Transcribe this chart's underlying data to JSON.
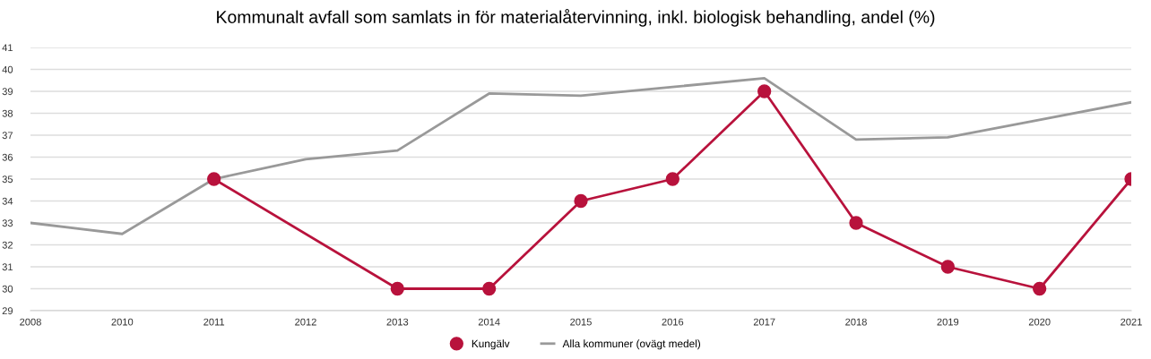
{
  "chart_data": {
    "type": "line",
    "title": "Kommunalt avfall som samlats in för materialåtervinning, inkl. biologisk behandling, andel (%)",
    "categories": [
      "2008",
      "2010",
      "2011",
      "2012",
      "2013",
      "2014",
      "2015",
      "2016",
      "2017",
      "2018",
      "2019",
      "2020",
      "2021"
    ],
    "series": [
      {
        "name": "Kungälv",
        "color": "#b8123c",
        "marker": "circle",
        "values": [
          null,
          null,
          35,
          null,
          30,
          30,
          34,
          35,
          39,
          33,
          31,
          30,
          35
        ]
      },
      {
        "name": "Alla kommuner (ovägt medel)",
        "color": "#999999",
        "marker": "none",
        "values": [
          33.0,
          32.5,
          35.0,
          35.9,
          36.3,
          38.9,
          38.8,
          39.2,
          39.6,
          36.8,
          36.9,
          37.7,
          38.5
        ]
      }
    ],
    "ylim": [
      29,
      41
    ],
    "yticks": [
      29,
      30,
      31,
      32,
      33,
      34,
      35,
      36,
      37,
      38,
      39,
      40,
      41
    ],
    "grid": "y",
    "legend": "bottom"
  }
}
